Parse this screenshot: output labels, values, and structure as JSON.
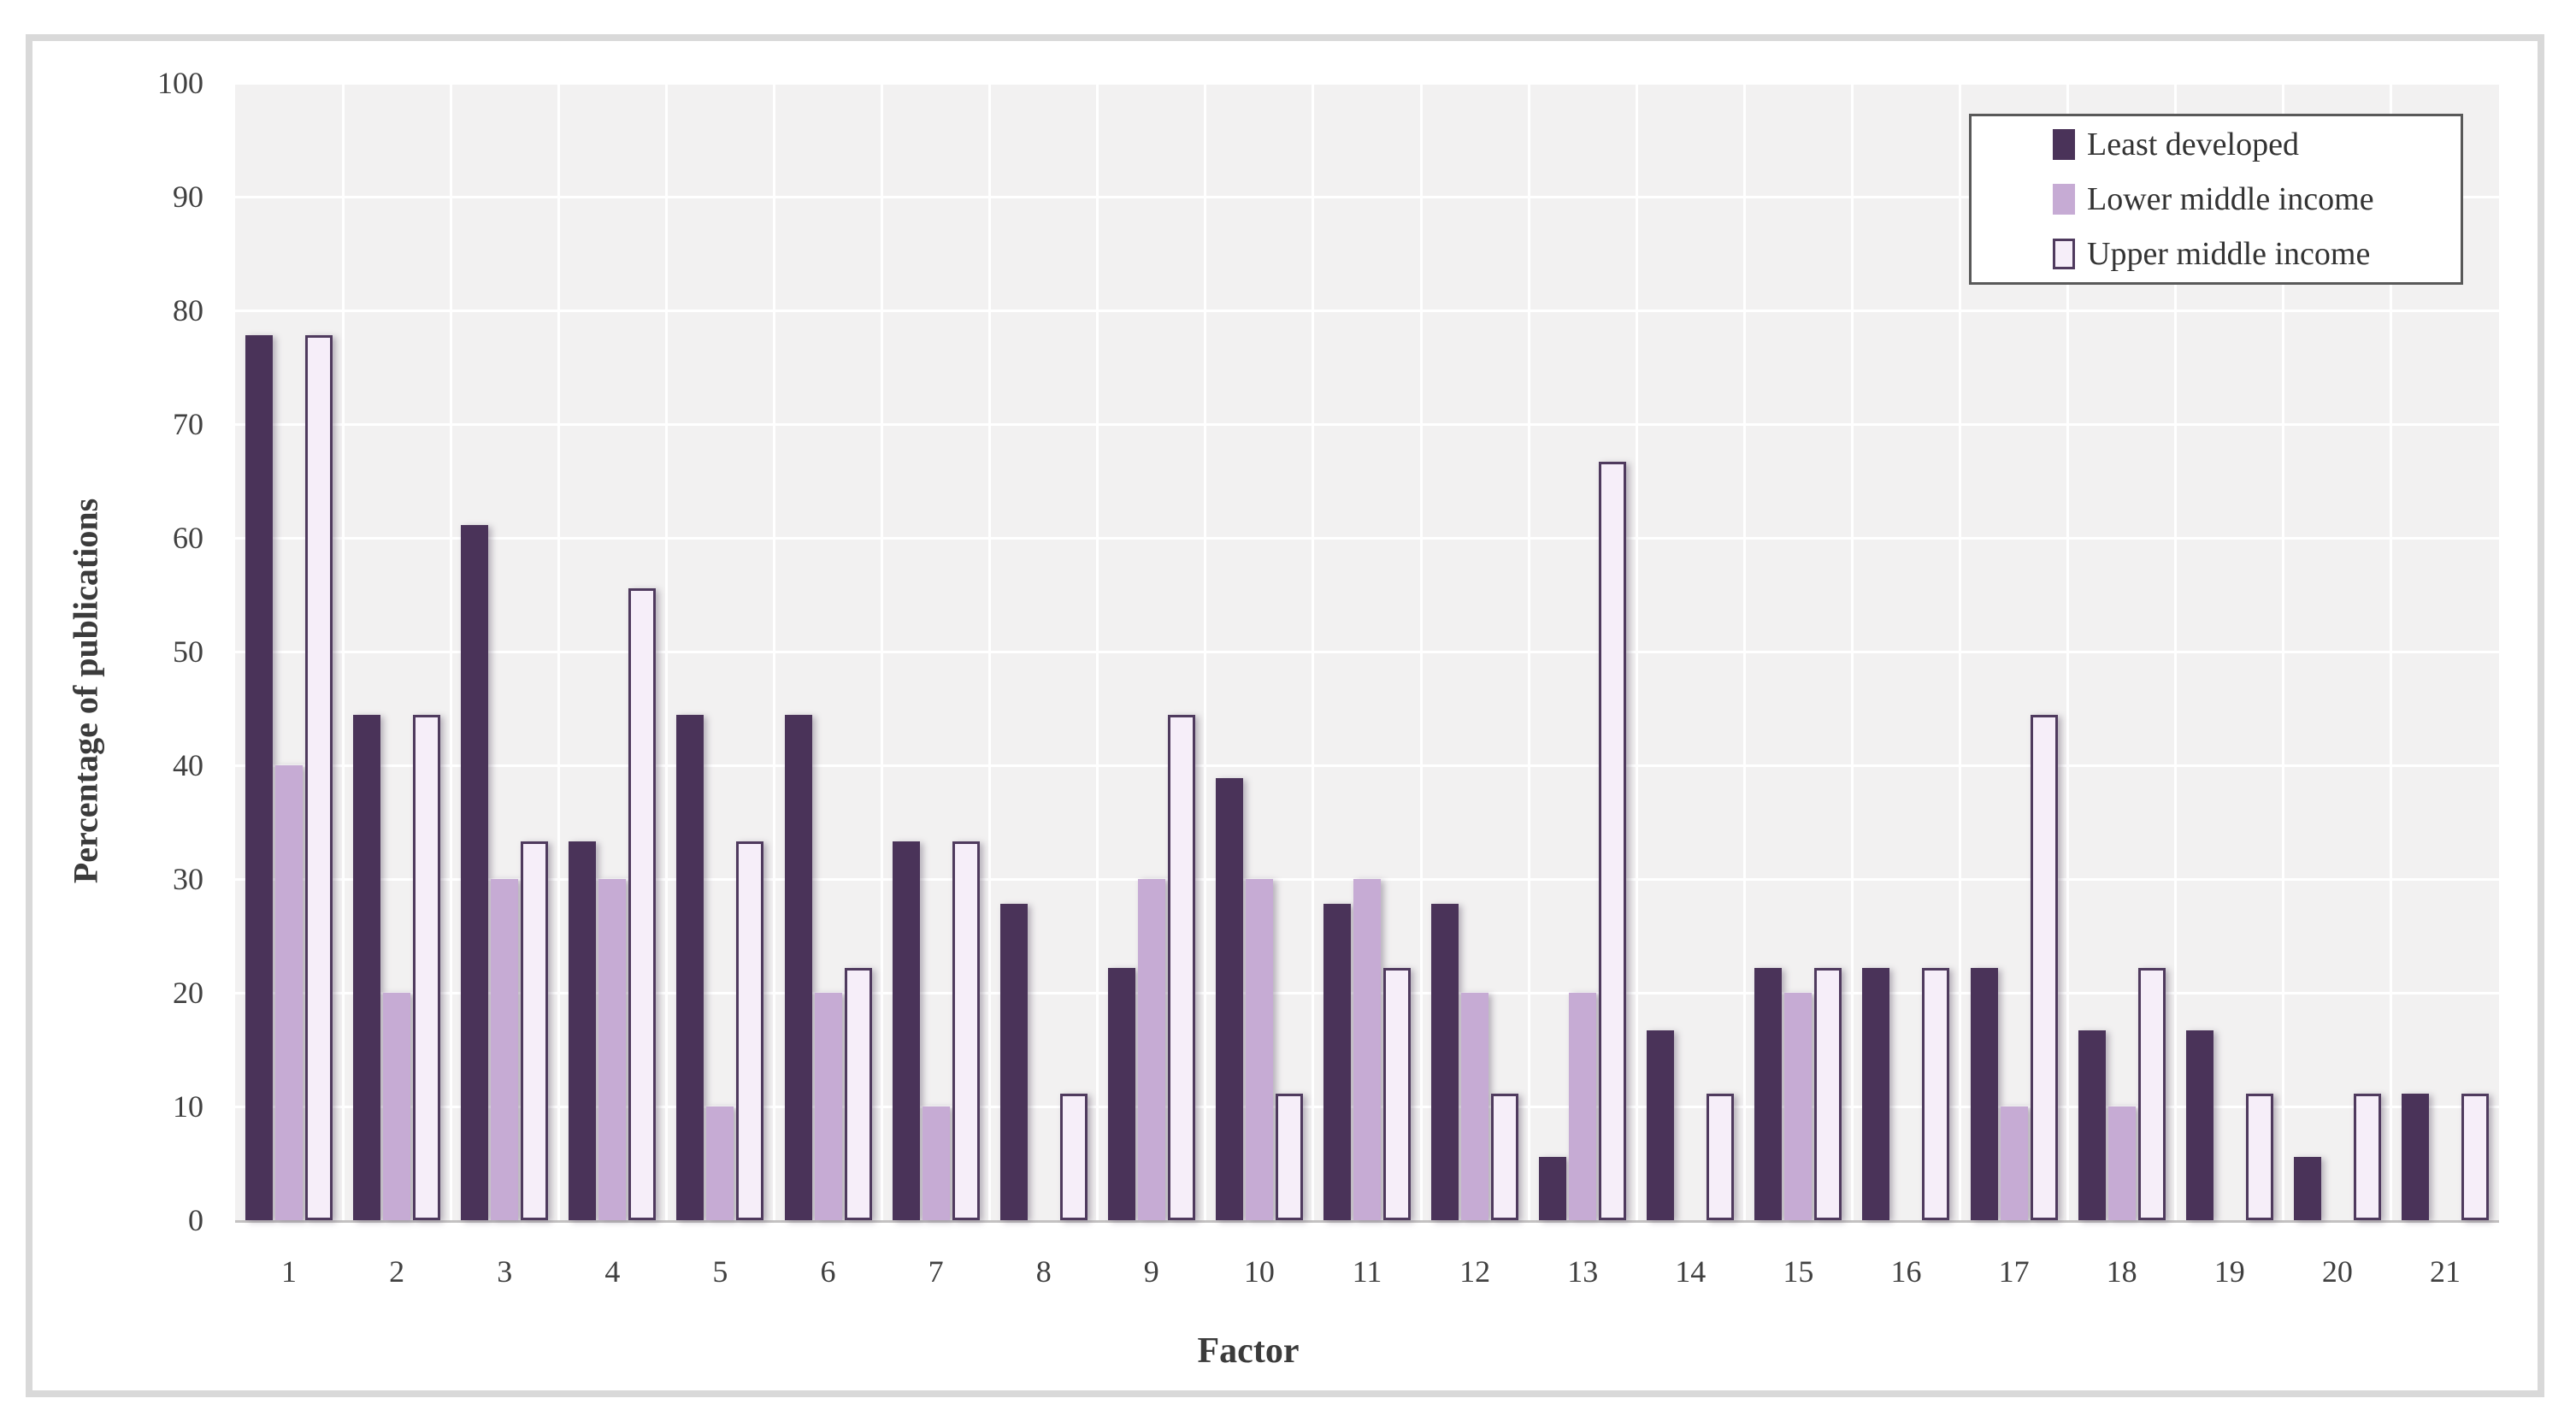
{
  "chart_data": {
    "type": "bar",
    "title": "",
    "xlabel": "Factor",
    "ylabel": "Percentage of publications",
    "categories": [
      "1",
      "2",
      "3",
      "4",
      "5",
      "6",
      "7",
      "8",
      "9",
      "10",
      "11",
      "12",
      "13",
      "14",
      "15",
      "16",
      "17",
      "18",
      "19",
      "20",
      "21"
    ],
    "series": [
      {
        "name": "Least developed",
        "color": "#4a3359",
        "border_color": "",
        "values": [
          77.8,
          44.4,
          61.1,
          33.3,
          44.4,
          44.4,
          33.3,
          27.8,
          22.2,
          38.9,
          27.8,
          27.8,
          5.6,
          16.7,
          22.2,
          22.2,
          22.2,
          16.7,
          16.7,
          5.6,
          11.1
        ]
      },
      {
        "name": "Lower middle income",
        "color": "#c6abd4",
        "border_color": "",
        "values": [
          40,
          20,
          30,
          30,
          10,
          20,
          10,
          0,
          30,
          30,
          30,
          20,
          20,
          0,
          20,
          0,
          10,
          10,
          0,
          0,
          0
        ]
      },
      {
        "name": "Upper middle income",
        "color": "#f6eef9",
        "border_color": "#4f3a5e",
        "values": [
          77.8,
          44.4,
          33.3,
          55.6,
          33.3,
          22.2,
          33.3,
          11.1,
          44.4,
          11.1,
          22.2,
          11.1,
          66.7,
          11.1,
          22.2,
          22.2,
          44.4,
          22.2,
          11.1,
          11.1,
          11.1
        ]
      }
    ],
    "ylim": [
      0,
      100
    ],
    "yticks": [
      0,
      10,
      20,
      30,
      40,
      50,
      60,
      70,
      80,
      90,
      100
    ],
    "grid": true,
    "legend_position": "top-right",
    "plot_background": "#f2f1f1",
    "gridline_color": "#ffffff",
    "axis_line_color": "#c3c1c1",
    "frame_border_color": "#d9d9d9",
    "text_color": "#404040"
  }
}
